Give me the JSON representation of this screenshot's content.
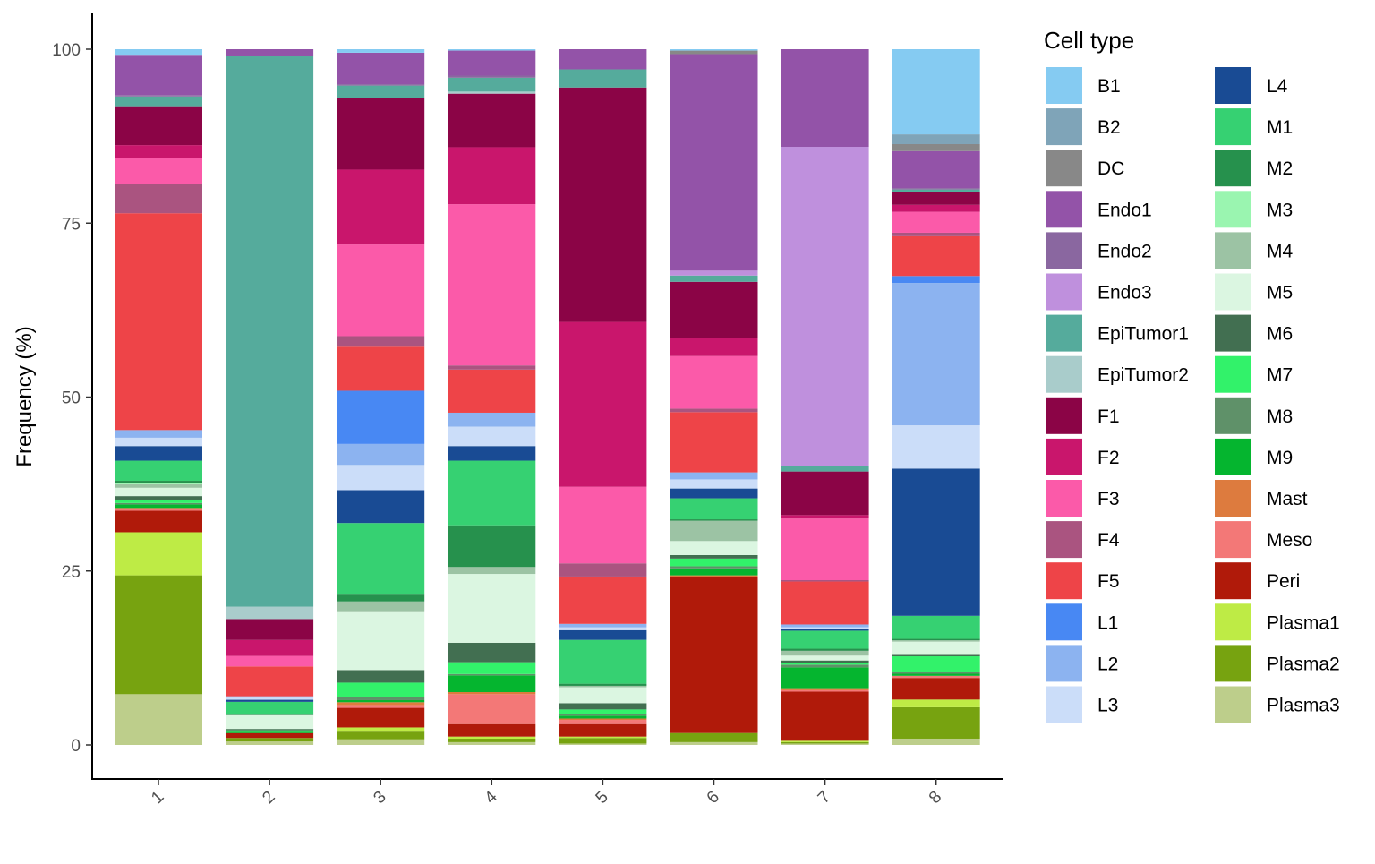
{
  "chart_data": {
    "type": "bar",
    "stacked": true,
    "ylabel": "Frequency (%)",
    "xlabel": "",
    "ylim": [
      -5,
      105
    ],
    "yticks": [
      0,
      25,
      50,
      75,
      100
    ],
    "categories": [
      "1",
      "2",
      "3",
      "4",
      "5",
      "6",
      "7",
      "8"
    ],
    "legend": {
      "title": "Cell type",
      "position": "right",
      "columns": 2
    },
    "series": [
      {
        "name": "B1",
        "color": "#85CBF2",
        "values": [
          0.8,
          0.0,
          0.5,
          0.2,
          0.0,
          0.2,
          0.0,
          12.2
        ]
      },
      {
        "name": "B2",
        "color": "#7FA4B8",
        "values": [
          0.0,
          0.0,
          0.0,
          0.0,
          0.0,
          0.0,
          0.0,
          1.4
        ]
      },
      {
        "name": "DC",
        "color": "#888888",
        "values": [
          0.0,
          0.0,
          0.0,
          0.0,
          0.0,
          0.5,
          0.0,
          1.0
        ]
      },
      {
        "name": "Endo1",
        "color": "#9353A8",
        "values": [
          5.8,
          0.9,
          4.5,
          3.6,
          2.9,
          30.9,
          14.1,
          5.3
        ]
      },
      {
        "name": "Endo2",
        "color": "#8A67A0",
        "values": [
          0.2,
          0.0,
          0.2,
          0.3,
          0.0,
          0.0,
          0.0,
          0.2
        ]
      },
      {
        "name": "Endo3",
        "color": "#BF90DD",
        "values": [
          0.0,
          0.0,
          0.0,
          0.0,
          0.0,
          0.7,
          46.1,
          0.0
        ]
      },
      {
        "name": "EpiTumor1",
        "color": "#55AB9C",
        "values": [
          1.4,
          79.3,
          1.8,
          2.0,
          2.6,
          0.9,
          0.8,
          0.3
        ]
      },
      {
        "name": "EpiTumor2",
        "color": "#A9CCCB",
        "values": [
          0.0,
          1.8,
          0.0,
          0.3,
          0.0,
          0.0,
          0.0,
          0.0
        ]
      },
      {
        "name": "F1",
        "color": "#8B0446",
        "values": [
          5.6,
          3.0,
          10.2,
          7.7,
          33.7,
          8.0,
          6.3,
          1.9
        ]
      },
      {
        "name": "F2",
        "color": "#C9166C",
        "values": [
          1.8,
          2.3,
          10.7,
          8.2,
          23.7,
          2.6,
          0.5,
          1.0
        ]
      },
      {
        "name": "F3",
        "color": "#FB5AA9",
        "values": [
          3.8,
          1.5,
          13.1,
          23.2,
          11.0,
          7.5,
          8.9,
          3.0
        ]
      },
      {
        "name": "F4",
        "color": "#AA5480",
        "values": [
          4.2,
          0.0,
          1.5,
          0.6,
          1.9,
          0.5,
          0.2,
          0.5
        ]
      },
      {
        "name": "F5",
        "color": "#EE4448",
        "values": [
          31.2,
          4.3,
          6.3,
          6.2,
          6.8,
          8.6,
          6.2,
          5.7
        ]
      },
      {
        "name": "L1",
        "color": "#4888F3",
        "values": [
          0.0,
          0.0,
          7.6,
          0.0,
          0.0,
          0.0,
          0.0,
          1.0
        ]
      },
      {
        "name": "L2",
        "color": "#8CB3F0",
        "values": [
          1.1,
          0.2,
          3.0,
          2.0,
          0.5,
          1.0,
          0.4,
          20.4
        ]
      },
      {
        "name": "L3",
        "color": "#CBDDF9",
        "values": [
          1.2,
          0.3,
          3.6,
          2.8,
          0.4,
          1.3,
          0.2,
          6.2
        ]
      },
      {
        "name": "L4",
        "color": "#194B94",
        "values": [
          2.1,
          0.3,
          4.7,
          2.1,
          1.4,
          1.4,
          0.3,
          21.1
        ]
      },
      {
        "name": "M1",
        "color": "#36D172",
        "values": [
          2.9,
          1.7,
          10.1,
          9.3,
          6.3,
          3.0,
          2.6,
          3.3
        ]
      },
      {
        "name": "M2",
        "color": "#26914D",
        "values": [
          0.3,
          0.2,
          1.1,
          6.0,
          0.3,
          0.2,
          0.3,
          0.2
        ]
      },
      {
        "name": "M3",
        "color": "#9AF5B0",
        "values": [
          0.2,
          0.0,
          0.0,
          0.0,
          0.0,
          0.0,
          0.0,
          0.0
        ]
      },
      {
        "name": "M4",
        "color": "#9CC3A4",
        "values": [
          0.5,
          0.0,
          1.4,
          1.0,
          0.2,
          2.9,
          0.7,
          0.2
        ]
      },
      {
        "name": "M5",
        "color": "#DBF6E1",
        "values": [
          1.2,
          2.0,
          8.4,
          9.9,
          2.3,
          2.0,
          0.7,
          1.9
        ]
      },
      {
        "name": "M6",
        "color": "#426F51",
        "values": [
          0.5,
          0.2,
          1.8,
          2.8,
          0.9,
          0.5,
          0.4,
          0.2
        ]
      },
      {
        "name": "M7",
        "color": "#32F26A",
        "values": [
          0.5,
          0.2,
          2.1,
          1.7,
          0.7,
          1.1,
          0.2,
          2.3
        ]
      },
      {
        "name": "M8",
        "color": "#5F9169",
        "values": [
          0.2,
          0.0,
          0.4,
          0.2,
          0.2,
          0.3,
          0.4,
          0.2
        ]
      },
      {
        "name": "M9",
        "color": "#05B52F",
        "values": [
          0.5,
          0.2,
          0.3,
          2.4,
          0.4,
          1.0,
          3.0,
          0.3
        ]
      },
      {
        "name": "Mast",
        "color": "#DD7B3E",
        "values": [
          0.2,
          0.0,
          0.4,
          0.3,
          0.2,
          0.3,
          0.3,
          0.0
        ]
      },
      {
        "name": "Meso",
        "color": "#F37877",
        "values": [
          0.2,
          0.0,
          0.4,
          4.3,
          0.6,
          0.0,
          0.2,
          0.3
        ]
      },
      {
        "name": "Peri",
        "color": "#B01A0A",
        "values": [
          3.1,
          0.7,
          2.8,
          1.8,
          1.8,
          22.2,
          7.1,
          3.1
        ]
      },
      {
        "name": "Plasma1",
        "color": "#BEEB45",
        "values": [
          6.2,
          0.0,
          0.6,
          0.3,
          0.2,
          0.0,
          0.2,
          1.1
        ]
      },
      {
        "name": "Plasma2",
        "color": "#77A310",
        "values": [
          17.1,
          0.5,
          1.1,
          0.5,
          0.8,
          1.3,
          0.2,
          4.5
        ]
      },
      {
        "name": "Plasma3",
        "color": "#BDCE8B",
        "values": [
          7.3,
          0.5,
          0.8,
          0.4,
          0.2,
          0.4,
          0.2,
          0.9
        ]
      }
    ]
  }
}
